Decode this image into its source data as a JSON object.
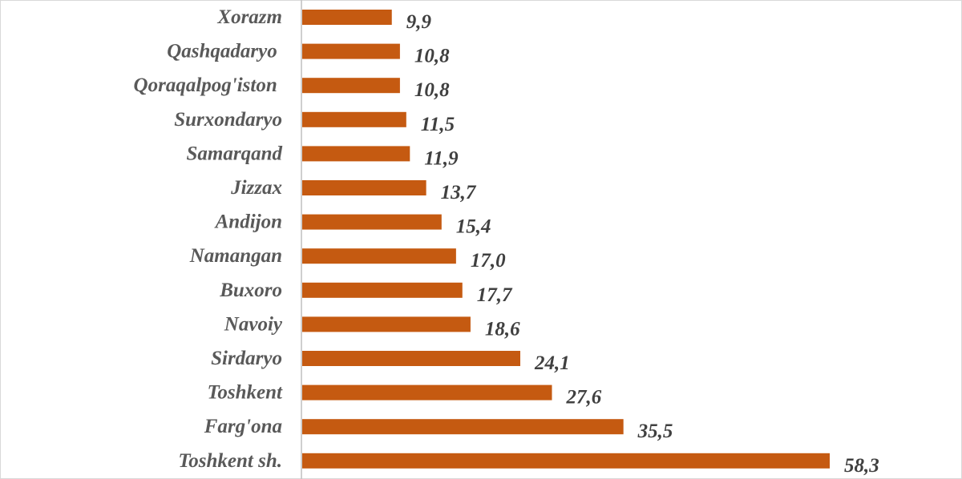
{
  "chart_data": {
    "type": "bar",
    "orientation": "horizontal",
    "title": "",
    "xlabel": "",
    "ylabel": "",
    "categories": [
      "Xorazm",
      "Qashqadaryo ",
      "Qoraqalpog'iston ",
      "Surxondaryo",
      "Samarqand",
      "Jizzax",
      "Andijon",
      "Namangan",
      "Buxoro",
      "Navoiy",
      "Sirdaryo",
      "Toshkent",
      "Farg'ona",
      "Toshkent sh."
    ],
    "values": [
      9.9,
      10.8,
      10.8,
      11.5,
      11.9,
      13.7,
      15.4,
      17.0,
      17.7,
      18.6,
      24.1,
      27.6,
      35.5,
      58.3
    ],
    "value_labels": [
      "9,9",
      "10,8",
      "10,8",
      "11,5",
      "11,9",
      "13,7",
      "15,4",
      "17,0",
      "17,7",
      "18,6",
      "24,1",
      "27,6",
      "35,5",
      "58,3"
    ],
    "xlim": [
      0,
      58.3
    ],
    "grid": false,
    "legend": "none",
    "bar_color": "#c55a11",
    "axis_color": "#bfbfbf"
  }
}
